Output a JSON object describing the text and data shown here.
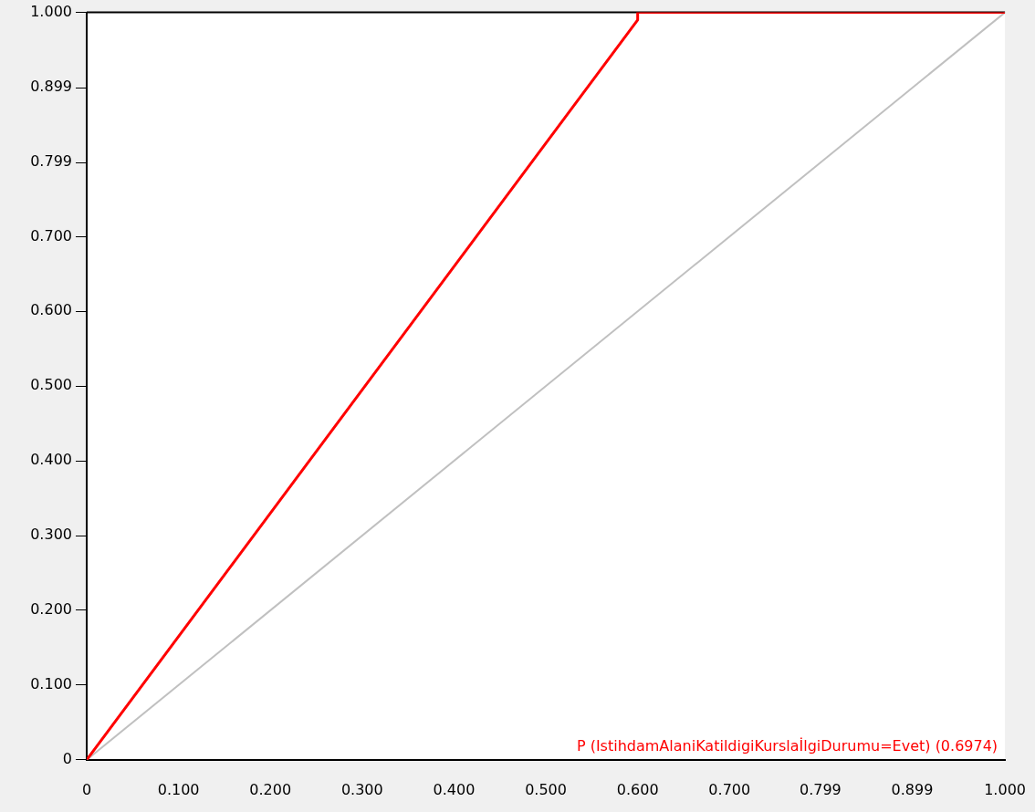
{
  "chart_data": {
    "type": "line",
    "xlim": [
      0,
      1
    ],
    "ylim": [
      0,
      1
    ],
    "xticks": [
      0,
      {
        "value": 0.1,
        "label": "0.100"
      },
      {
        "value": 0.2,
        "label": "0.200"
      },
      {
        "value": 0.3,
        "label": "0.300"
      },
      {
        "value": 0.4,
        "label": "0.400"
      },
      {
        "value": 0.5,
        "label": "0.500"
      },
      {
        "value": 0.6,
        "label": "0.600"
      },
      {
        "value": 0.7,
        "label": "0.700"
      },
      {
        "value": 0.799,
        "label": "0.799"
      },
      {
        "value": 0.899,
        "label": "0.899"
      },
      {
        "value": 1,
        "label": "1.000"
      }
    ],
    "yticks": [
      0,
      {
        "value": 0.1,
        "label": "0.100"
      },
      {
        "value": 0.2,
        "label": "0.200"
      },
      {
        "value": 0.3,
        "label": "0.300"
      },
      {
        "value": 0.4,
        "label": "0.400"
      },
      {
        "value": 0.5,
        "label": "0.500"
      },
      {
        "value": 0.6,
        "label": "0.600"
      },
      {
        "value": 0.7,
        "label": "0.700"
      },
      {
        "value": 0.799,
        "label": "0.799"
      },
      {
        "value": 0.899,
        "label": "0.899"
      },
      {
        "value": 1,
        "label": "1.000"
      }
    ],
    "series": [
      {
        "color": "#ff0000",
        "x": [
          0,
          0.6,
          0.6,
          1
        ],
        "values": [
          0,
          0.99,
          1,
          1
        ]
      },
      {
        "color": "#c0c0c0",
        "x": [
          0,
          1
        ],
        "values": [
          0,
          1
        ]
      }
    ],
    "annotations": [
      "P (IstihdamAlaniKatildigiKurslaİlgiDurumu=Evet) (0.6974)"
    ],
    "grid": false,
    "legend": false,
    "marker": "none",
    "line_style": "solid"
  }
}
